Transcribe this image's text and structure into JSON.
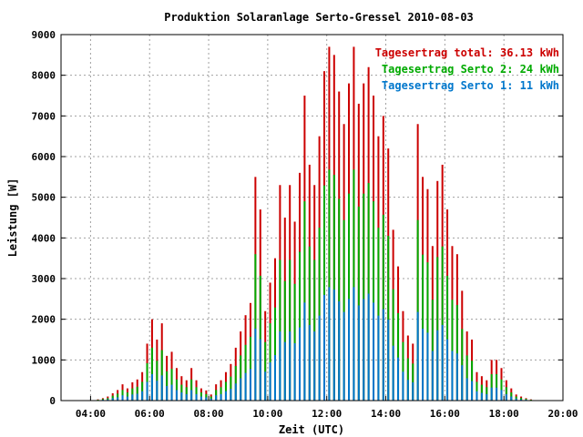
{
  "chart_data": {
    "type": "bar",
    "title": "Produktion Solaranlage Serto-Gressel 2010-08-03",
    "xlabel": "Zeit (UTC)",
    "ylabel": "Leistung [W]",
    "xlim": [
      "03:00",
      "20:00"
    ],
    "ylim": [
      0,
      9000
    ],
    "grid": true,
    "legend_position": "top-right",
    "x_ticks": [
      "04:00",
      "06:00",
      "08:00",
      "10:00",
      "12:00",
      "14:00",
      "16:00",
      "18:00",
      "20:00"
    ],
    "y_ticks": [
      "0",
      "1000",
      "2000",
      "3000",
      "4000",
      "5000",
      "6000",
      "7000",
      "8000",
      "9000"
    ],
    "colors": {
      "total": "#cc0000",
      "serto2": "#00aa00",
      "serto1": "#0077cc"
    },
    "legend": [
      {
        "key": "total",
        "label": "Tagesertrag total: 36.13 kWh"
      },
      {
        "key": "serto2",
        "label": "Tagesertrag Serto 2: 24 kWh"
      },
      {
        "key": "serto1",
        "label": "Tagesertrag Serto 1: 11 kWh"
      }
    ],
    "x": [
      "04:15",
      "04:25",
      "04:35",
      "04:45",
      "04:55",
      "05:05",
      "05:15",
      "05:25",
      "05:35",
      "05:45",
      "05:55",
      "06:05",
      "06:15",
      "06:25",
      "06:35",
      "06:45",
      "06:55",
      "07:05",
      "07:15",
      "07:25",
      "07:35",
      "07:45",
      "07:55",
      "08:05",
      "08:15",
      "08:25",
      "08:35",
      "08:45",
      "08:55",
      "09:05",
      "09:15",
      "09:25",
      "09:35",
      "09:45",
      "09:55",
      "10:05",
      "10:15",
      "10:25",
      "10:35",
      "10:45",
      "10:55",
      "11:05",
      "11:15",
      "11:25",
      "11:35",
      "11:45",
      "11:55",
      "12:05",
      "12:15",
      "12:25",
      "12:35",
      "12:45",
      "12:55",
      "13:05",
      "13:15",
      "13:25",
      "13:35",
      "13:45",
      "13:55",
      "14:05",
      "14:15",
      "14:25",
      "14:35",
      "14:45",
      "14:55",
      "15:05",
      "15:15",
      "15:25",
      "15:35",
      "15:45",
      "15:55",
      "16:05",
      "16:15",
      "16:25",
      "16:35",
      "16:45",
      "16:55",
      "17:05",
      "17:15",
      "17:25",
      "17:35",
      "17:45",
      "17:55",
      "18:05",
      "18:15",
      "18:25",
      "18:35",
      "18:45",
      "18:55",
      "19:05"
    ],
    "series": [
      {
        "name": "total",
        "values": [
          30,
          60,
          100,
          180,
          260,
          400,
          300,
          450,
          520,
          700,
          1400,
          2000,
          1500,
          1900,
          1100,
          1200,
          800,
          600,
          500,
          800,
          500,
          300,
          250,
          150,
          400,
          500,
          700,
          900,
          1300,
          1700,
          2100,
          2400,
          5500,
          4700,
          2200,
          2900,
          3500,
          5300,
          4500,
          5300,
          4400,
          5600,
          7500,
          5800,
          5300,
          6500,
          8100,
          8700,
          8500,
          7600,
          6800,
          7800,
          8700,
          7300,
          7800,
          8200,
          7500,
          6500,
          7000,
          6200,
          4200,
          3300,
          2200,
          1600,
          1400,
          6800,
          5500,
          5200,
          3800,
          5400,
          5800,
          4700,
          3800,
          3600,
          2700,
          1700,
          1500,
          700,
          600,
          500,
          1000,
          1000,
          800,
          500,
          300,
          150,
          100,
          60,
          30,
          10
        ]
      },
      {
        "name": "Serto 2",
        "values": [
          20,
          40,
          60,
          120,
          170,
          260,
          200,
          300,
          340,
          460,
          920,
          1300,
          980,
          1240,
          720,
          780,
          520,
          390,
          330,
          520,
          330,
          200,
          160,
          100,
          260,
          330,
          460,
          590,
          850,
          1110,
          1370,
          1570,
          3600,
          3070,
          1440,
          1900,
          2290,
          3460,
          2940,
          3460,
          2870,
          3660,
          4900,
          3790,
          3460,
          4250,
          5290,
          5680,
          5550,
          4960,
          4440,
          5090,
          5680,
          4770,
          5090,
          5350,
          4900,
          4250,
          4570,
          4050,
          2740,
          2150,
          1440,
          1040,
          910,
          4440,
          3590,
          3400,
          2480,
          3530,
          3790,
          3070,
          2480,
          2350,
          1760,
          1110,
          980,
          460,
          390,
          330,
          650,
          650,
          520,
          330,
          200,
          100,
          65,
          40,
          20,
          6
        ]
      },
      {
        "name": "Serto 1",
        "values": [
          10,
          20,
          30,
          60,
          80,
          130,
          100,
          150,
          170,
          230,
          460,
          650,
          490,
          620,
          360,
          390,
          260,
          200,
          160,
          260,
          160,
          100,
          80,
          50,
          130,
          160,
          230,
          290,
          420,
          550,
          680,
          780,
          1770,
          1510,
          710,
          940,
          1120,
          1700,
          1440,
          1700,
          1410,
          1800,
          2410,
          1860,
          1700,
          2090,
          2600,
          2790,
          2730,
          2440,
          2180,
          2500,
          2790,
          2340,
          2500,
          2630,
          2410,
          2090,
          2250,
          1990,
          1350,
          1060,
          710,
          510,
          450,
          2180,
          1770,
          1670,
          1220,
          1730,
          1860,
          1510,
          1220,
          1160,
          870,
          550,
          480,
          230,
          190,
          160,
          320,
          320,
          260,
          160,
          100,
          50,
          30,
          20,
          10,
          3
        ]
      }
    ]
  }
}
